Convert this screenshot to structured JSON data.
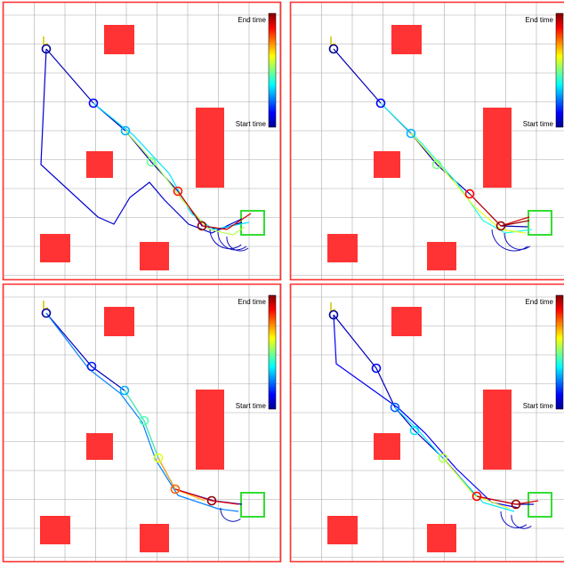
{
  "colorbar": {
    "end_label": "End time",
    "start_label": "Start time"
  },
  "colors": {
    "panel_border": "#ff3333",
    "grid": "#aaaaaa",
    "obstacle": "#ff3333",
    "goal": "#33dd33",
    "start_marker": "#d4c000"
  },
  "panels": [
    {
      "id": "top-left"
    },
    {
      "id": "top-right"
    },
    {
      "id": "bottom-left"
    },
    {
      "id": "bottom-right"
    }
  ]
}
